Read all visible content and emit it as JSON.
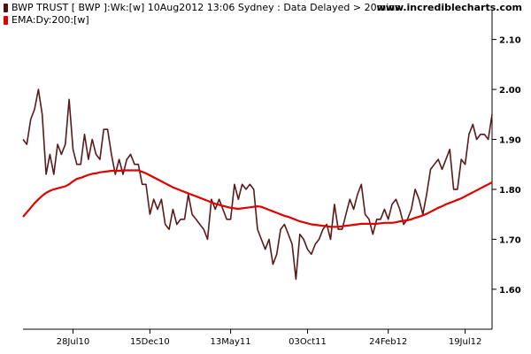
{
  "header": {
    "legend_price": "BWP TRUST [ BWP ]:Wk:[w]  10Aug2012 13:06 Sydney : Data Delayed > 20mins",
    "legend_ema": "EMA:Dy:200:[w]",
    "site": "www.incrediblecharts.com"
  },
  "colors": {
    "price": "#5a1a1a",
    "ema": "#e00000",
    "axis": "#000000",
    "background": "#ffffff"
  },
  "chart_data": {
    "type": "line",
    "title": "",
    "xlabel": "",
    "ylabel": "",
    "x_ticks": [
      "28Jul10",
      "15Dec10",
      "13May11",
      "03Oct11",
      "24Feb12",
      "19Jul12"
    ],
    "x_tick_index": [
      13,
      33,
      54,
      74,
      95,
      115
    ],
    "y_ticks": [
      1.6,
      1.7,
      1.8,
      1.9,
      2.0,
      2.1
    ],
    "y_tick_labels": [
      "1.60",
      "1.70",
      "1.80",
      "1.90",
      "2.00",
      "2.10"
    ],
    "ylim": [
      1.52,
      2.14
    ],
    "x_range": [
      0,
      122
    ],
    "grid": false,
    "legend_position": "top-left",
    "series": [
      {
        "name": "BWP TRUST [ BWP ]:Wk:[w]",
        "values": [
          1.9,
          1.89,
          1.94,
          1.96,
          2.0,
          1.95,
          1.83,
          1.87,
          1.83,
          1.89,
          1.87,
          1.89,
          1.98,
          1.88,
          1.85,
          1.85,
          1.91,
          1.86,
          1.9,
          1.87,
          1.86,
          1.92,
          1.92,
          1.87,
          1.83,
          1.86,
          1.83,
          1.86,
          1.87,
          1.85,
          1.85,
          1.81,
          1.81,
          1.75,
          1.78,
          1.76,
          1.78,
          1.73,
          1.72,
          1.76,
          1.73,
          1.74,
          1.74,
          1.79,
          1.75,
          1.74,
          1.73,
          1.72,
          1.7,
          1.78,
          1.76,
          1.78,
          1.76,
          1.74,
          1.74,
          1.81,
          1.78,
          1.81,
          1.8,
          1.81,
          1.8,
          1.72,
          1.7,
          1.68,
          1.7,
          1.65,
          1.67,
          1.72,
          1.73,
          1.71,
          1.69,
          1.62,
          1.71,
          1.7,
          1.68,
          1.67,
          1.69,
          1.7,
          1.72,
          1.73,
          1.7,
          1.77,
          1.72,
          1.72,
          1.75,
          1.78,
          1.76,
          1.79,
          1.81,
          1.75,
          1.74,
          1.71,
          1.74,
          1.74,
          1.76,
          1.74,
          1.77,
          1.78,
          1.76,
          1.73,
          1.74,
          1.76,
          1.8,
          1.78,
          1.75,
          1.79,
          1.84,
          1.85,
          1.86,
          1.84,
          1.86,
          1.88,
          1.8,
          1.8,
          1.86,
          1.85,
          1.91,
          1.93,
          1.9,
          1.91,
          1.91,
          1.9,
          1.95
        ]
      },
      {
        "name": "EMA:Dy:200:[w]",
        "values": [
          1.745,
          1.754,
          1.763,
          1.772,
          1.78,
          1.787,
          1.793,
          1.797,
          1.8,
          1.802,
          1.804,
          1.806,
          1.81,
          1.816,
          1.821,
          1.823,
          1.826,
          1.829,
          1.831,
          1.832,
          1.834,
          1.835,
          1.836,
          1.837,
          1.837,
          1.837,
          1.838,
          1.838,
          1.838,
          1.838,
          1.838,
          1.835,
          1.832,
          1.828,
          1.824,
          1.82,
          1.816,
          1.812,
          1.808,
          1.804,
          1.801,
          1.798,
          1.795,
          1.792,
          1.789,
          1.786,
          1.783,
          1.78,
          1.777,
          1.774,
          1.771,
          1.769,
          1.767,
          1.765,
          1.763,
          1.762,
          1.761,
          1.762,
          1.763,
          1.764,
          1.765,
          1.766,
          1.765,
          1.762,
          1.759,
          1.756,
          1.753,
          1.75,
          1.747,
          1.745,
          1.742,
          1.739,
          1.736,
          1.734,
          1.732,
          1.73,
          1.729,
          1.728,
          1.727,
          1.726,
          1.725,
          1.725,
          1.725,
          1.726,
          1.727,
          1.728,
          1.729,
          1.73,
          1.731,
          1.731,
          1.731,
          1.731,
          1.731,
          1.732,
          1.733,
          1.733,
          1.733,
          1.734,
          1.736,
          1.737,
          1.738,
          1.74,
          1.743,
          1.745,
          1.748,
          1.751,
          1.755,
          1.759,
          1.763,
          1.766,
          1.77,
          1.773,
          1.776,
          1.779,
          1.782,
          1.786,
          1.79,
          1.794,
          1.798,
          1.802,
          1.806,
          1.81,
          1.814
        ]
      }
    ]
  }
}
